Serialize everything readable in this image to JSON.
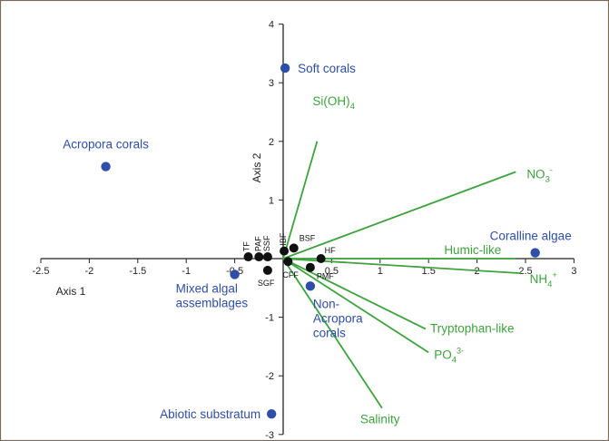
{
  "chart_data": {
    "type": "scatter",
    "subtype": "ordination biplot",
    "xlabel": "Axis 1",
    "ylabel": "Axis 2",
    "xlim": [
      -2.5,
      3
    ],
    "ylim": [
      -3,
      4
    ],
    "x_ticks": [
      "-2.5",
      "-2",
      "-1.5",
      "-1",
      "-0.5",
      "0",
      "0.5",
      "1",
      "1.5",
      "2",
      "2.5",
      "3"
    ],
    "y_ticks": [
      "4",
      "3",
      "2",
      "1",
      "0",
      "-1",
      "-2",
      "-3"
    ],
    "grid": false,
    "colors": {
      "groups": "#2e4ea8",
      "vectors": "#3da33d",
      "samples": "#111111",
      "axes": "#222222",
      "border": "#7a6a5a"
    },
    "groups": [
      {
        "label": "Soft corals",
        "x": 0.02,
        "y": 3.25
      },
      {
        "label": "Acropora corals",
        "x": -1.83,
        "y": 1.57
      },
      {
        "label": "Coralline algae",
        "x": 2.6,
        "y": 0.1
      },
      {
        "label_lines": [
          "Mixed algal",
          "assemblages"
        ],
        "x": -0.5,
        "y": -0.27
      },
      {
        "label_lines": [
          "Non-",
          "Acropora",
          "corals"
        ],
        "x": 0.28,
        "y": -0.47
      },
      {
        "label": "Abiotic substratum",
        "x": -0.12,
        "y": -2.65
      }
    ],
    "vectors": [
      {
        "label": "Si(OH)",
        "subscript": "4",
        "superscript": "",
        "x": 0.35,
        "y": 2.0
      },
      {
        "label": "NO",
        "subscript": "3",
        "superscript": "-",
        "x": 2.4,
        "y": 1.48
      },
      {
        "label": "Humic-like",
        "subscript": "",
        "superscript": "",
        "x": 2.4,
        "y": 0.0
      },
      {
        "label": "NH",
        "subscript": "4",
        "superscript": "+",
        "x": 2.45,
        "y": -0.25
      },
      {
        "label": "Tryptophan-like",
        "subscript": "",
        "superscript": "",
        "x": 1.47,
        "y": -1.2
      },
      {
        "label": "PO",
        "subscript": "4",
        "superscript": "3-",
        "x": 1.5,
        "y": -1.6
      },
      {
        "label": "Salinity",
        "subscript": "",
        "superscript": "",
        "x": 1.02,
        "y": -2.55
      }
    ],
    "samples": [
      {
        "label": "TF",
        "x": -0.36,
        "y": 0.03
      },
      {
        "label": "PAF",
        "x": -0.25,
        "y": 0.03
      },
      {
        "label": "SSF",
        "x": -0.16,
        "y": 0.03
      },
      {
        "label": "SGF",
        "x": -0.16,
        "y": -0.2
      },
      {
        "label": "IBF",
        "x": 0.01,
        "y": 0.13
      },
      {
        "label": "BSF",
        "x": 0.11,
        "y": 0.18
      },
      {
        "label": "CFF",
        "x": 0.05,
        "y": -0.05
      },
      {
        "label": "HF",
        "x": 0.39,
        "y": 0.0
      },
      {
        "label": "PMF",
        "x": 0.28,
        "y": -0.15
      }
    ]
  }
}
